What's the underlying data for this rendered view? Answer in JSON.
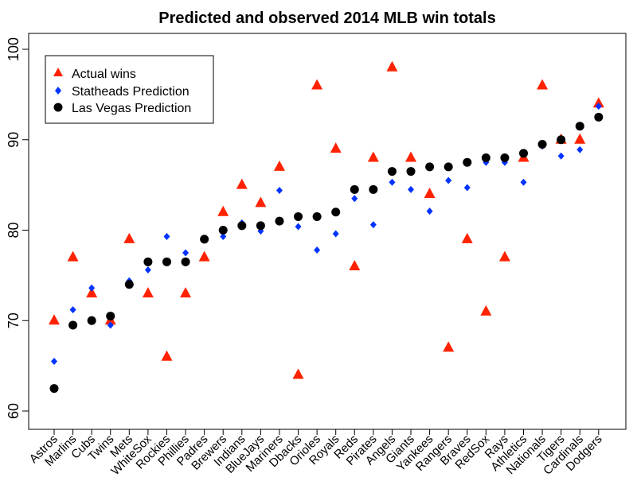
{
  "chart_data": {
    "type": "scatter",
    "title": "Predicted and observed 2014 MLB win totals",
    "xlabel": "",
    "ylabel": "",
    "ylim": [
      59,
      101
    ],
    "yticks": [
      60,
      70,
      80,
      90,
      100
    ],
    "grid": false,
    "legend_placement": "top-left",
    "categories": [
      "Astros",
      "Marlins",
      "Cubs",
      "Twins",
      "Mets",
      "WhiteSox",
      "Rockies",
      "Phillies",
      "Padres",
      "Brewers",
      "Indians",
      "BlueJays",
      "Mariners",
      "Dbacks",
      "Orioles",
      "Royals",
      "Reds",
      "Pirates",
      "Angels",
      "Giants",
      "Yankees",
      "Rangers",
      "Braves",
      "RedSox",
      "Rays",
      "Athletics",
      "Nationals",
      "Tigers",
      "Cardinals",
      "Dodgers"
    ],
    "series": [
      {
        "name": "Actual wins",
        "marker": "triangle",
        "color": "#ff2200",
        "values": [
          70,
          77,
          73,
          70,
          79,
          73,
          66,
          73,
          77,
          82,
          85,
          83,
          87,
          64,
          96,
          89,
          76,
          88,
          98,
          88,
          84,
          67,
          79,
          71,
          77,
          88,
          96,
          90,
          90,
          94
        ]
      },
      {
        "name": "Statheads Prediction",
        "marker": "diamond",
        "color": "#0033ff",
        "values": [
          65.5,
          71.2,
          73.6,
          69.5,
          74.4,
          75.6,
          79.3,
          77.5,
          79.0,
          79.3,
          80.8,
          79.9,
          84.4,
          80.4,
          77.8,
          79.6,
          83.5,
          80.6,
          85.3,
          84.5,
          82.1,
          85.5,
          84.7,
          87.5,
          87.5,
          85.3,
          89.3,
          88.2,
          88.9,
          93.7
        ]
      },
      {
        "name": "Las Vegas Prediction",
        "marker": "circle",
        "color": "#000000",
        "values": [
          62.5,
          69.5,
          70,
          70.5,
          74,
          76.5,
          76.5,
          76.5,
          79,
          80,
          80.5,
          80.5,
          81,
          81.5,
          81.5,
          82,
          84.5,
          84.5,
          86.5,
          86.5,
          87,
          87,
          87.5,
          88,
          88,
          88.5,
          89.5,
          90,
          91.5,
          92.5
        ]
      }
    ]
  }
}
